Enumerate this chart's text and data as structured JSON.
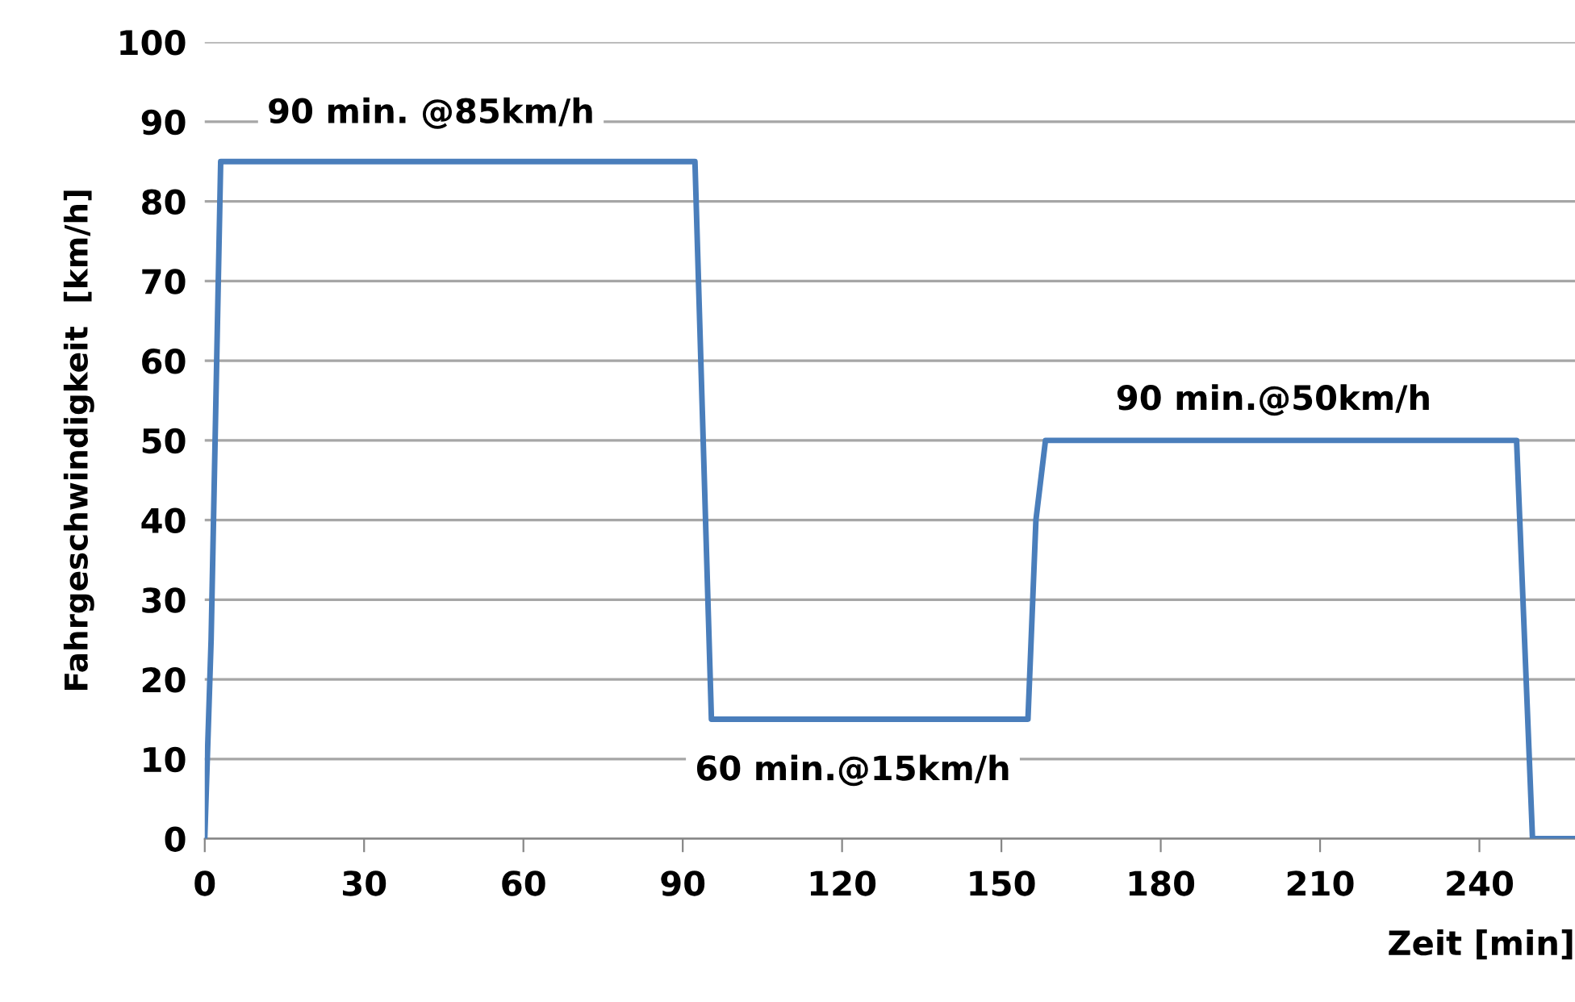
{
  "chart_data": {
    "type": "line",
    "xlabel": "Zeit [min]",
    "ylabel": "Fahrgeschwindigkeit  [km/h]",
    "series": [
      {
        "color": "#4a7ebb",
        "x": [
          0,
          1.2,
          3,
          92.3,
          95.4,
          155,
          156.5,
          158.3,
          247,
          250,
          258
        ],
        "values": [
          0,
          25,
          85,
          85,
          15,
          15,
          40,
          50,
          50,
          0,
          0
        ]
      }
    ],
    "xlim": [
      0,
      258
    ],
    "xticks": [
      0,
      30,
      60,
      90,
      120,
      150,
      180,
      210,
      240
    ],
    "ylim": [
      0,
      100
    ],
    "yticks": [
      0,
      10,
      20,
      30,
      40,
      50,
      60,
      70,
      80,
      90,
      100
    ],
    "grid": "y",
    "line_style": "solid",
    "marker": "none",
    "annotations": [
      "90 min. @85km/h",
      "90 min.@50km/h",
      "60 min.@15km/h"
    ]
  }
}
